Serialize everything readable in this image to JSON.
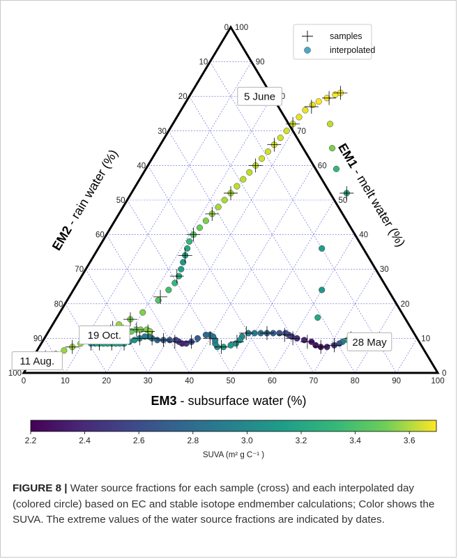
{
  "chart_data": {
    "type": "scatter",
    "subtype": "ternary",
    "axes": {
      "em1": {
        "label": "EM1 - melt water (%)",
        "label_bold": "EM1",
        "label_rest": " - melt water (%)",
        "ticks": [
          "0",
          "10",
          "20",
          "30",
          "40",
          "50",
          "60",
          "70",
          "80",
          "90",
          "100"
        ]
      },
      "em2": {
        "label": "EM2 - rain water (%)",
        "label_bold": "EM2",
        "label_rest": " - rain water (%)",
        "ticks": [
          "0",
          "10",
          "20",
          "30",
          "40",
          "50",
          "60",
          "70",
          "80",
          "90",
          "100"
        ]
      },
      "em3": {
        "label": "EM3 - subsurface water (%)",
        "label_bold": "EM3",
        "label_rest": " - subsurface water (%)",
        "ticks": [
          "0",
          "10",
          "20",
          "30",
          "40",
          "50",
          "60",
          "70",
          "80",
          "90",
          "100"
        ]
      }
    },
    "grid": true,
    "legend": {
      "placement": "top-right",
      "entries": [
        {
          "marker": "cross",
          "label": "samples"
        },
        {
          "marker": "circle",
          "label": "interpolated"
        }
      ]
    },
    "annotations": [
      {
        "text": "5 June",
        "em3": 17,
        "em1": 80
      },
      {
        "text": "11 Aug.",
        "em3": 1.5,
        "em1": 3.5
      },
      {
        "text": "19 Oct.",
        "em3": 14,
        "em1": 11
      },
      {
        "text": "28 May",
        "em3": 79,
        "em1": 9
      }
    ],
    "colorbar": {
      "label": "SUVA (m² g C⁻¹ )",
      "min": 2.2,
      "max": 3.7,
      "ticks": [
        "2.2",
        "2.4",
        "2.6",
        "2.8",
        "3.0",
        "3.2",
        "3.4",
        "3.6"
      ],
      "colormap": "viridis"
    },
    "series": [
      {
        "name": "interpolated",
        "points": [
          [
            77,
            9,
            3.6
          ],
          [
            76,
            9,
            3.55
          ],
          [
            75,
            9.5,
            3.45
          ],
          [
            74,
            10,
            3.3
          ],
          [
            73.5,
            9.5,
            3.1
          ],
          [
            72.5,
            9,
            2.85
          ],
          [
            72,
            8.5,
            2.6
          ],
          [
            71,
            8,
            2.45
          ],
          [
            69.5,
            7.5,
            2.35
          ],
          [
            68,
            7.5,
            2.3
          ],
          [
            66.5,
            8,
            2.28
          ],
          [
            65,
            9,
            2.3
          ],
          [
            63,
            9.5,
            2.35
          ],
          [
            61,
            10,
            2.4
          ],
          [
            59.5,
            10.5,
            2.45
          ],
          [
            58.5,
            11,
            2.5
          ],
          [
            57.5,
            11.5,
            2.55
          ],
          [
            56,
            11.5,
            2.6
          ],
          [
            54.5,
            11.5,
            2.65
          ],
          [
            53,
            11.5,
            2.7
          ],
          [
            51.5,
            11.5,
            2.75
          ],
          [
            50,
            11.5,
            2.8
          ],
          [
            48.5,
            11.5,
            2.85
          ],
          [
            47.5,
            10.5,
            2.9
          ],
          [
            47.5,
            9.5,
            2.95
          ],
          [
            47,
            8.5,
            2.97
          ],
          [
            46,
            8,
            3.0
          ],
          [
            44.5,
            7.5,
            3.0
          ],
          [
            43,
            7.5,
            2.95
          ],
          [
            42,
            8.5,
            2.9
          ],
          [
            41.5,
            9.5,
            2.85
          ],
          [
            40.5,
            10.5,
            2.8
          ],
          [
            39.5,
            11,
            2.75
          ],
          [
            38.5,
            11,
            2.7
          ],
          [
            37,
            10,
            2.65
          ],
          [
            36,
            9,
            2.55
          ],
          [
            35,
            8.5,
            2.45
          ],
          [
            34,
            8.5,
            2.35
          ],
          [
            33,
            9,
            2.4
          ],
          [
            32,
            9.5,
            2.5
          ],
          [
            30.5,
            9.5,
            2.6
          ],
          [
            29,
            9.5,
            2.65
          ],
          [
            27.5,
            9.5,
            2.7
          ],
          [
            26,
            10,
            2.75
          ],
          [
            25,
            10.5,
            2.8
          ],
          [
            24,
            10.5,
            2.85
          ],
          [
            23,
            10,
            2.9
          ],
          [
            22,
            9.5,
            2.95
          ],
          [
            21,
            9,
            2.97
          ],
          [
            20,
            8.5,
            3.0
          ],
          [
            19,
            8.5,
            3.02
          ],
          [
            18,
            8.5,
            3.05
          ],
          [
            17,
            8.5,
            3.05
          ],
          [
            16,
            8.5,
            3.05
          ],
          [
            15,
            8.5,
            3.05
          ],
          [
            14,
            8.5,
            3.05
          ],
          [
            13,
            8.5,
            3.0
          ],
          [
            12,
            8.5,
            2.95
          ],
          [
            14.5,
            12,
            3.2
          ],
          [
            15.5,
            12,
            3.25
          ],
          [
            16.5,
            12,
            3.3
          ],
          [
            17.5,
            12,
            3.3
          ],
          [
            18.5,
            12,
            3.3
          ],
          [
            20,
            12,
            3.35
          ],
          [
            21,
            12.5,
            3.35
          ],
          [
            22,
            12.5,
            3.4
          ],
          [
            23.5,
            12.5,
            3.4
          ],
          [
            24.5,
            12,
            3.45
          ],
          [
            2,
            4,
            3.6
          ],
          [
            3,
            4.5,
            3.55
          ],
          [
            4,
            5,
            3.5
          ],
          [
            5,
            5.5,
            3.45
          ],
          [
            6.5,
            6.5,
            3.45
          ],
          [
            8,
            7.5,
            3.45
          ],
          [
            9.5,
            8.5,
            3.45
          ],
          [
            11,
            9.5,
            3.45
          ],
          [
            12.5,
            11,
            3.45
          ],
          [
            14,
            12.5,
            3.45
          ],
          [
            16,
            14,
            3.45
          ],
          [
            18,
            15.5,
            3.4
          ],
          [
            20,
            17.5,
            3.4
          ],
          [
            22,
            21,
            3.3
          ],
          [
            23,
            24,
            3.25
          ],
          [
            23.5,
            26,
            3.2
          ],
          [
            23.5,
            28,
            3.1
          ],
          [
            23,
            30,
            3.05
          ],
          [
            22.5,
            32,
            3.0
          ],
          [
            22,
            34,
            3.05
          ],
          [
            21.5,
            36,
            3.1
          ],
          [
            21,
            38,
            3.2
          ],
          [
            21,
            40,
            3.3
          ],
          [
            21.5,
            42,
            3.35
          ],
          [
            22,
            44,
            3.4
          ],
          [
            22.5,
            46,
            3.45
          ],
          [
            23,
            48,
            3.5
          ],
          [
            23.5,
            50,
            3.5
          ],
          [
            24,
            52,
            3.5
          ],
          [
            24.5,
            54,
            3.55
          ],
          [
            25,
            56,
            3.55
          ],
          [
            25.5,
            58,
            3.55
          ],
          [
            26,
            60,
            3.55
          ],
          [
            26.5,
            62,
            3.6
          ],
          [
            27,
            64,
            3.6
          ],
          [
            27.5,
            66,
            3.6
          ],
          [
            28,
            68,
            3.6
          ],
          [
            28.5,
            70,
            3.6
          ],
          [
            29,
            72,
            3.6
          ],
          [
            29.5,
            74,
            3.65
          ],
          [
            30,
            76,
            3.65
          ],
          [
            31,
            77.5,
            3.65
          ],
          [
            32,
            78.5,
            3.7
          ],
          [
            33.5,
            79.5,
            3.7
          ],
          [
            35,
            80.5,
            3.7
          ],
          [
            36,
            81,
            3.7
          ],
          [
            38,
            72,
            3.55
          ],
          [
            42,
            65,
            3.4
          ],
          [
            46,
            59,
            3.2
          ],
          [
            52,
            52,
            3.1
          ],
          [
            54,
            36,
            3.05
          ],
          [
            60,
            24,
            3.0
          ],
          [
            63,
            16,
            3.1
          ]
        ]
      },
      {
        "name": "samples",
        "points": [
          [
            76,
            9
          ],
          [
            74,
            10
          ],
          [
            71,
            8
          ],
          [
            68,
            7.5
          ],
          [
            64,
            9
          ],
          [
            60,
            10
          ],
          [
            57.5,
            11
          ],
          [
            53,
            11.5
          ],
          [
            48,
            11.5
          ],
          [
            47,
            9
          ],
          [
            44,
            7.5
          ],
          [
            40,
            10
          ],
          [
            36,
            9
          ],
          [
            32,
            9
          ],
          [
            29,
            9.5
          ],
          [
            26,
            10
          ],
          [
            23,
            10
          ],
          [
            20,
            8.5
          ],
          [
            17,
            8.5
          ],
          [
            14,
            8.5
          ],
          [
            12,
            8.5
          ],
          [
            15,
            12
          ],
          [
            18,
            12
          ],
          [
            21,
            12.5
          ],
          [
            24,
            12
          ],
          [
            3,
            4.5
          ],
          [
            8,
            7.5
          ],
          [
            12,
            10
          ],
          [
            15,
            13
          ],
          [
            18,
            15.5
          ],
          [
            22,
            22
          ],
          [
            23,
            28
          ],
          [
            22,
            34
          ],
          [
            21,
            40
          ],
          [
            22.5,
            46
          ],
          [
            24,
            52
          ],
          [
            26,
            60
          ],
          [
            27.5,
            66
          ],
          [
            29,
            72
          ],
          [
            31,
            77
          ],
          [
            34,
            79.5
          ],
          [
            36,
            81
          ],
          [
            52,
            52
          ]
        ]
      }
    ]
  },
  "caption": {
    "label": "FIGURE 8 |",
    "text": " Water source fractions for each sample (cross) and each interpolated day (colored circle) based on EC and stable isotope endmember calculations; Color shows the SUVA. The extreme values of the water source fractions are indicated by dates."
  }
}
